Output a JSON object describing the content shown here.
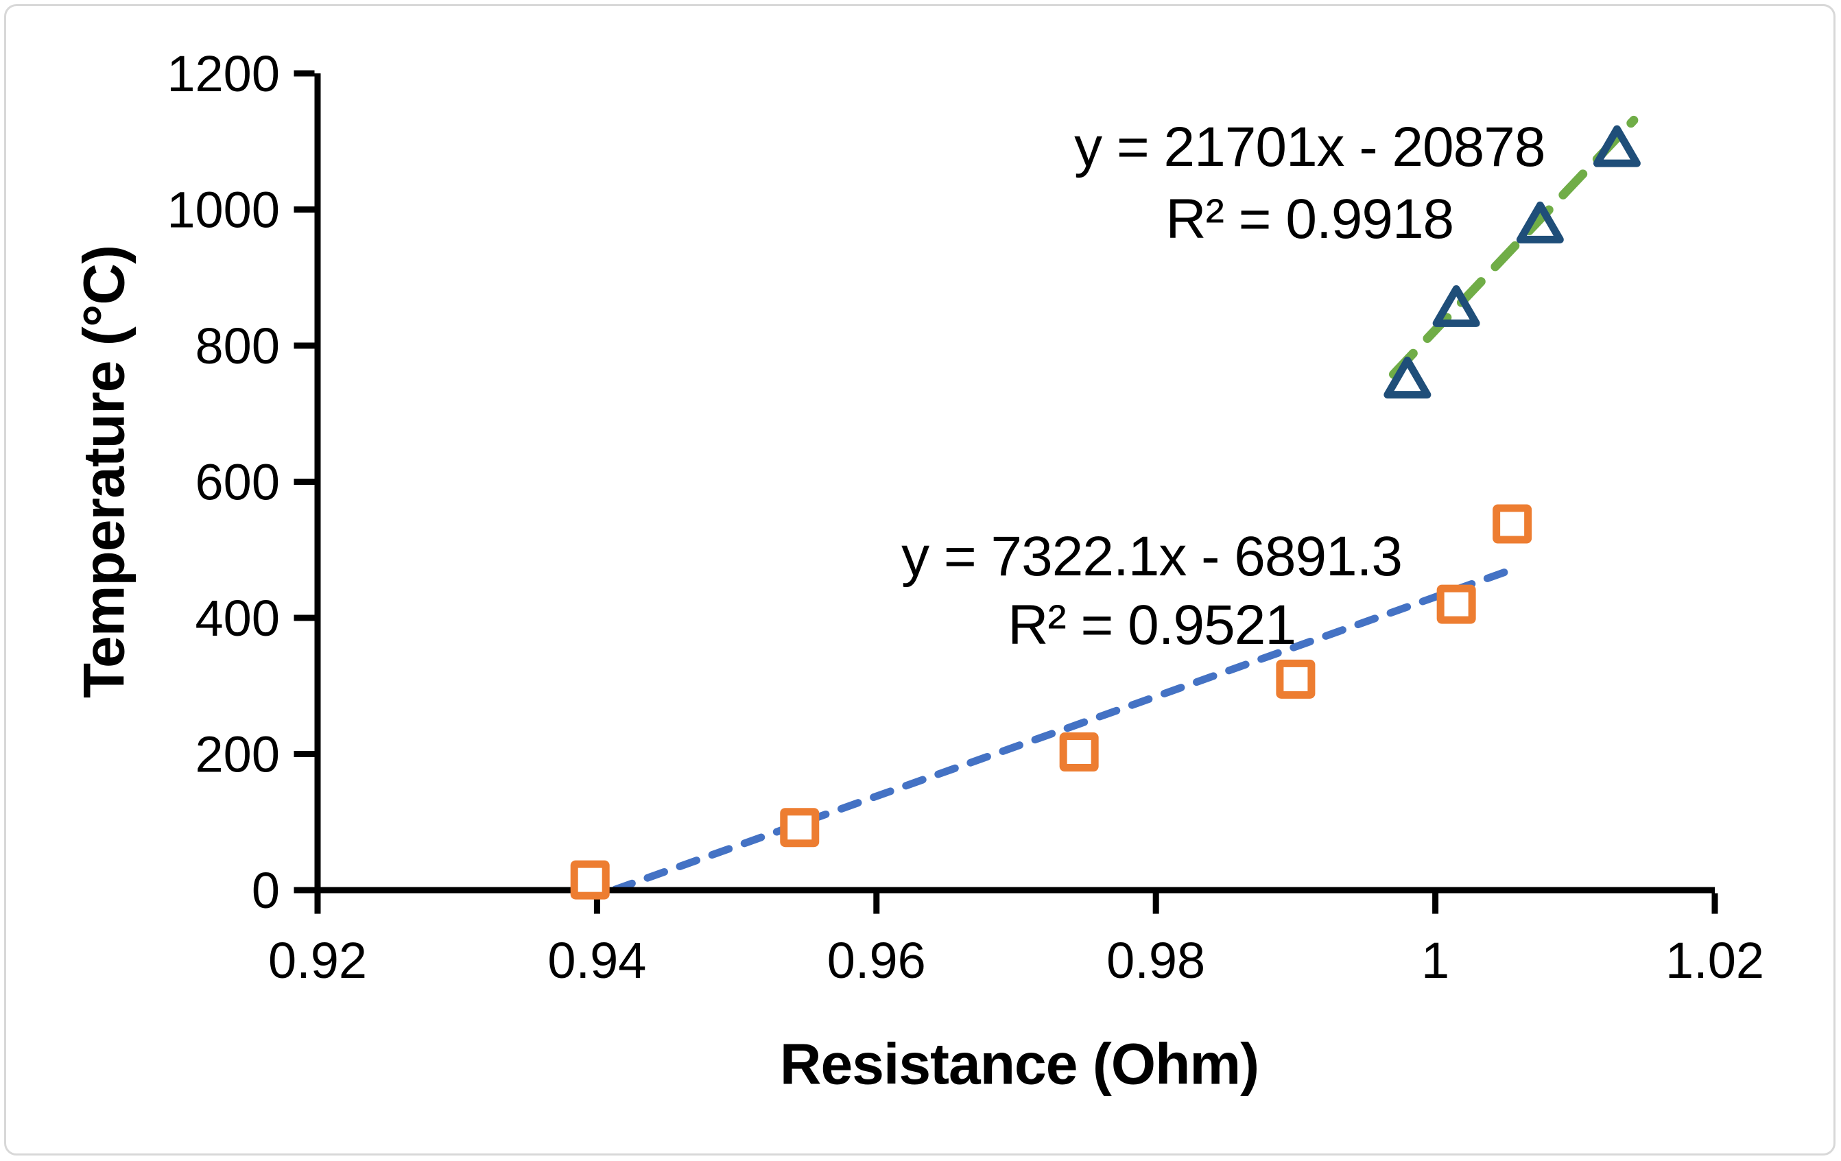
{
  "frame": {
    "border_color": "#d8d8d8",
    "background": "#ffffff"
  },
  "chart_data": {
    "type": "scatter",
    "title": "",
    "xlabel": "Resistance (Ohm)",
    "ylabel": "Temperature (°C)",
    "xlim": [
      0.92,
      1.02
    ],
    "ylim": [
      0,
      1200
    ],
    "x_tick_values": [
      0.92,
      0.94,
      0.96,
      0.98,
      1.0,
      1.02
    ],
    "x_tick_labels": [
      "0.92",
      "0.94",
      "0.96",
      "0.98",
      "1",
      "1.02"
    ],
    "y_tick_values": [
      0,
      200,
      400,
      600,
      800,
      1000,
      1200
    ],
    "y_tick_labels": [
      "0",
      "200",
      "400",
      "600",
      "800",
      "1000",
      "1200"
    ],
    "grid": false,
    "legend": "none",
    "axis_color": "#000000",
    "series": [
      {
        "name": "squares-series",
        "marker": "square",
        "marker_color": "#ED7D31",
        "points": [
          [
            0.9395,
            15
          ],
          [
            0.9545,
            92
          ],
          [
            0.9745,
            203
          ],
          [
            0.99,
            310
          ],
          [
            1.0015,
            420
          ],
          [
            1.0055,
            538
          ]
        ],
        "trendline": {
          "style": "dashed",
          "color": "#4472C4",
          "slope": 7322.1,
          "intercept": -6891.3,
          "x_start": 0.9413,
          "x_end": 1.0053,
          "equation": "y = 7322.1x - 6891.3",
          "r_squared": "R² = 0.9521",
          "label_center": {
            "x": 0.9797,
            "y_equation": 490,
            "y_r2": 389
          }
        }
      },
      {
        "name": "triangles-series",
        "marker": "triangle",
        "marker_color": "#1F4E79",
        "points": [
          [
            0.998,
            750
          ],
          [
            1.0015,
            855
          ],
          [
            1.0075,
            978
          ],
          [
            1.013,
            1090
          ]
        ],
        "trendline": {
          "style": "dashed",
          "color": "#70AD47",
          "slope": 21701,
          "intercept": -20878,
          "x_start": 0.997,
          "x_end": 1.0142,
          "equation": "y = 21701x - 20878",
          "r_squared": "R² = 0.9918",
          "label_center": {
            "x": 0.991,
            "y_equation": 1091,
            "y_r2": 985
          }
        }
      }
    ]
  }
}
